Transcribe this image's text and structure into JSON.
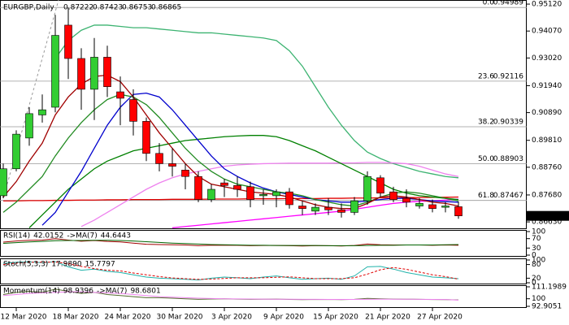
{
  "chart_data": {
    "type": "candlestick",
    "title": "EURGBP,Daily",
    "categories": [
      null,
      "12 Mar 2020",
      null,
      null,
      null,
      "18 Mar 2020",
      null,
      null,
      null,
      "24 Mar 2020",
      null,
      null,
      null,
      "30 Mar 2020",
      null,
      null,
      null,
      "3 Apr 2020",
      null,
      null,
      null,
      "9 Apr 2020",
      null,
      null,
      null,
      "15 Apr 2020",
      null,
      null,
      null,
      "21 Apr 2020",
      null,
      null,
      null,
      "27 Apr 2020",
      null,
      null
    ],
    "open": [
      0.8765,
      0.887,
      0.899,
      0.908,
      0.911,
      0.943,
      0.93,
      0.918,
      0.9305,
      0.917,
      0.914,
      0.9055,
      0.893,
      0.889,
      0.8865,
      0.884,
      0.875,
      0.8815,
      0.8805,
      0.88,
      0.8765,
      0.8765,
      0.878,
      0.8725,
      0.8705,
      0.872,
      0.871,
      0.87,
      0.8745,
      0.8835,
      0.878,
      0.8755,
      0.8725,
      0.873,
      0.872,
      0.87222
    ],
    "high": [
      0.889,
      0.902,
      0.911,
      0.916,
      0.947,
      0.9498,
      0.934,
      0.938,
      0.935,
      0.923,
      0.918,
      0.907,
      0.897,
      0.895,
      0.889,
      0.886,
      0.881,
      0.883,
      0.884,
      0.882,
      0.879,
      0.879,
      0.8795,
      0.8745,
      0.8735,
      0.8755,
      0.8735,
      0.876,
      0.886,
      0.8845,
      0.88,
      0.879,
      0.8755,
      0.875,
      0.874,
      0.87423
    ],
    "low": [
      0.8755,
      0.886,
      0.896,
      0.905,
      0.909,
      0.922,
      0.91,
      0.906,
      0.915,
      0.904,
      0.9,
      0.89,
      0.886,
      0.884,
      0.879,
      0.874,
      0.874,
      0.876,
      0.876,
      0.872,
      0.873,
      0.872,
      0.8715,
      0.869,
      0.869,
      0.869,
      0.868,
      0.869,
      0.873,
      0.876,
      0.874,
      0.872,
      0.8715,
      0.87,
      0.87,
      0.86753
    ],
    "close": [
      0.887,
      0.9005,
      0.9085,
      0.91,
      0.939,
      0.93,
      0.918,
      0.9305,
      0.919,
      0.9145,
      0.9055,
      0.893,
      0.889,
      0.888,
      0.884,
      0.875,
      0.879,
      0.8805,
      0.879,
      0.875,
      0.877,
      0.878,
      0.873,
      0.8715,
      0.872,
      0.871,
      0.87,
      0.8745,
      0.884,
      0.8775,
      0.875,
      0.874,
      0.8735,
      0.8715,
      0.8725,
      0.86865
    ],
    "up_color": "#32cd32",
    "down_color": "#ff0000",
    "ylim": [
      0.8638,
      0.9528
    ],
    "yticks": [
      {
        "value": 0.9512,
        "label": "0.95120"
      },
      {
        "value": 0.9407,
        "label": "0.94070"
      },
      {
        "value": 0.9302,
        "label": "0.93020"
      },
      {
        "value": 0.9194,
        "label": "0.91940"
      },
      {
        "value": 0.9089,
        "label": "0.90890"
      },
      {
        "value": 0.8981,
        "label": "0.89810"
      },
      {
        "value": 0.8876,
        "label": "0.88760"
      },
      {
        "value": 0.8768,
        "label": "0.87680"
      },
      {
        "value": 0.8663,
        "label": "0.86630"
      }
    ],
    "fib_levels": [
      {
        "level": "0.0",
        "value": 0.94989
      },
      {
        "level": "23.6",
        "value": 0.92116
      },
      {
        "level": "38.2",
        "value": 0.90339
      },
      {
        "level": "50.0",
        "value": 0.88903
      },
      {
        "level": "61.8",
        "value": 0.87467
      }
    ],
    "series": [
      {
        "color": "#e00000",
        "values": [
          0.8745,
          0.8745,
          0.8746,
          0.8746,
          0.8747,
          0.8747,
          0.8748,
          0.8748,
          0.8749,
          0.8749,
          0.875,
          0.875,
          0.875,
          0.8751,
          0.8751,
          0.8751,
          0.8752,
          0.8752,
          0.8752,
          0.8753,
          0.8753,
          0.8753,
          0.8754,
          0.8754,
          0.8754,
          0.8755,
          0.8755,
          0.8756,
          0.8756,
          0.8757,
          0.8757,
          0.8758,
          0.8758,
          0.8759,
          0.8759,
          0.876
        ]
      },
      {
        "color": "#3cb371",
        "values": [
          null,
          null,
          null,
          null,
          0.93,
          0.937,
          0.941,
          0.943,
          0.943,
          0.9425,
          0.942,
          0.942,
          0.9415,
          0.941,
          0.9405,
          0.94,
          0.94,
          0.9395,
          0.939,
          0.9385,
          0.938,
          0.937,
          0.933,
          0.927,
          0.919,
          0.911,
          0.904,
          0.898,
          0.8935,
          0.891,
          0.889,
          0.8875,
          0.886,
          0.885,
          0.884,
          0.8835
        ]
      },
      {
        "color": "#ee82ee",
        "values": [
          null,
          null,
          null,
          null,
          null,
          null,
          0.8645,
          0.867,
          0.87,
          0.873,
          0.876,
          0.879,
          0.8815,
          0.8835,
          0.885,
          0.886,
          0.887,
          0.888,
          0.8885,
          0.8888,
          0.889,
          0.8891,
          0.8892,
          0.8892,
          0.8892,
          0.8892,
          0.8893,
          0.8893,
          0.8895,
          0.8895,
          0.8893,
          0.889,
          0.888,
          0.8865,
          0.885,
          0.884
        ]
      },
      {
        "color": "#ff00ff",
        "values": [
          null,
          null,
          null,
          null,
          null,
          null,
          null,
          null,
          null,
          null,
          null,
          null,
          null,
          0.864,
          0.8645,
          0.865,
          0.8655,
          0.866,
          0.8665,
          0.867,
          0.8675,
          0.868,
          0.8685,
          0.869,
          0.8695,
          0.87,
          0.8705,
          0.8712,
          0.872,
          0.8728,
          0.8735,
          0.874,
          0.8743,
          0.8745,
          0.8748,
          0.8752
        ]
      },
      {
        "color": "#008000",
        "values": [
          null,
          null,
          0.864,
          0.869,
          0.874,
          0.879,
          0.883,
          0.887,
          0.89,
          0.892,
          0.894,
          0.895,
          0.896,
          0.897,
          0.898,
          0.8985,
          0.899,
          0.8995,
          0.8998,
          0.9,
          0.9,
          0.8995,
          0.898,
          0.896,
          0.894,
          0.8915,
          0.889,
          0.8865,
          0.884,
          0.8815,
          0.879,
          0.8775,
          0.8765,
          0.876,
          0.8755,
          0.875
        ]
      },
      {
        "color": "#0000cd",
        "values": [
          null,
          null,
          null,
          0.865,
          0.87,
          0.878,
          0.886,
          0.895,
          0.904,
          0.911,
          0.916,
          0.9165,
          0.915,
          0.91,
          0.904,
          0.898,
          0.892,
          0.887,
          0.884,
          0.8815,
          0.8795,
          0.878,
          0.877,
          0.876,
          0.875,
          0.8745,
          0.874,
          0.874,
          0.8745,
          0.875,
          0.8755,
          0.8755,
          0.875,
          0.8745,
          0.8742,
          0.874
        ]
      },
      {
        "color": "#228b22",
        "values": [
          0.87,
          0.874,
          0.879,
          0.884,
          0.892,
          0.899,
          0.905,
          0.91,
          0.914,
          0.916,
          0.915,
          0.912,
          0.907,
          0.901,
          0.895,
          0.89,
          0.886,
          0.883,
          0.881,
          0.88,
          0.879,
          0.878,
          0.8775,
          0.8765,
          0.875,
          0.874,
          0.873,
          0.8725,
          0.874,
          0.876,
          0.8775,
          0.878,
          0.8775,
          0.8765,
          0.8755,
          0.8745
        ]
      },
      {
        "color": "#a00000",
        "values": [
          0.876,
          0.882,
          0.89,
          0.897,
          0.908,
          0.915,
          0.92,
          0.923,
          0.9235,
          0.921,
          0.915,
          0.908,
          0.901,
          0.895,
          0.889,
          0.884,
          0.881,
          0.88,
          0.879,
          0.878,
          0.8775,
          0.877,
          0.876,
          0.8745,
          0.873,
          0.872,
          0.8715,
          0.8715,
          0.8735,
          0.876,
          0.8765,
          0.876,
          0.875,
          0.874,
          0.8735,
          0.8725
        ]
      }
    ],
    "panes": [
      {
        "title": "RSI(14)",
        "ylim": [
          0,
          100
        ],
        "yticks": [
          0,
          30,
          70,
          100
        ],
        "series": [
          {
            "color": "#a00000",
            "values": [
              55,
              60,
              63,
              64,
              70,
              64,
              59,
              62,
              58,
              56,
              51,
              46,
              45,
              44,
              43,
              40,
              42,
              42,
              42,
              40,
              41,
              41,
              40,
              39,
              40,
              40,
              39,
              41,
              47,
              44,
              43,
              43,
              43,
              42,
              43,
              42.0152
            ]
          },
          {
            "name": "->MA(7)",
            "color": "#006400",
            "values": [
              50,
              53,
              56,
              58,
              61,
              62,
              62,
              63,
              63,
              62,
              60,
              57,
              54,
              51,
              49,
              47,
              45,
              44,
              43,
              42,
              42,
              41,
              41,
              41,
              41,
              40,
              40,
              40,
              41,
              42,
              42,
              43,
              43,
              43,
              44,
              44.6443
            ]
          }
        ]
      },
      {
        "title": "Stoch(5,3,3)",
        "ylim": [
          0,
          100
        ],
        "yticks": [
          0,
          20,
          80,
          100
        ],
        "series": [
          {
            "color": "#20b2aa",
            "values": [
              85,
              90,
              92,
              88,
              93,
              70,
              55,
              60,
              50,
              45,
              35,
              25,
              20,
              18,
              15,
              12,
              20,
              25,
              22,
              18,
              25,
              30,
              22,
              15,
              18,
              20,
              15,
              30,
              70,
              72,
              60,
              45,
              35,
              25,
              22,
              17.989
            ],
            "value_labels": [
              null,
              null,
              null,
              null,
              null,
              null,
              null,
              null,
              null,
              null,
              null,
              null,
              null,
              null,
              null,
              null,
              null,
              null,
              null,
              null,
              null,
              null,
              null,
              null,
              null,
              null,
              null,
              null,
              null,
              null,
              null,
              null,
              null,
              null,
              null,
              "17.9890"
            ]
          },
          {
            "color": "#e00000",
            "dashed": true,
            "values": [
              80,
              86,
              90,
              90,
              91,
              84,
              72,
              62,
              55,
              52,
              43,
              35,
              27,
              21,
              18,
              15,
              16,
              19,
              22,
              22,
              22,
              24,
              26,
              22,
              18,
              18,
              18,
              22,
              38,
              57,
              67,
              59,
              47,
              35,
              27,
              15.7797
            ]
          }
        ]
      },
      {
        "title": "Momentum(14)",
        "ylim": [
          92.9051,
          111.1989
        ],
        "yticks": [
          92.9051,
          100,
          111.1989
        ],
        "series": [
          {
            "color": "#556b2f",
            "values": [
              104,
              106,
              107,
              106,
              109,
              107,
              105,
              106,
              104,
              103,
              102,
              101,
              101,
              100.5,
              100,
              99.5,
              99.8,
              100,
              99.7,
              99.5,
              99.6,
              99.7,
              99.4,
              99.2,
              99.3,
              99.4,
              99.2,
              99.5,
              100.3,
              100,
              99.7,
              99.6,
              99.5,
              99.3,
              99.2,
              98.9396
            ]
          },
          {
            "name": "->MA(7)",
            "color": "#ee82ee",
            "values": [
              103,
              104,
              105,
              105.5,
              106,
              106.5,
              106.5,
              106,
              105.5,
              105,
              104,
              103,
              102,
              101.5,
              101,
              100.5,
              100.2,
              100,
              99.9,
              99.8,
              99.7,
              99.6,
              99.6,
              99.5,
              99.5,
              99.4,
              99.4,
              99.4,
              99.5,
              99.6,
              99.6,
              99.6,
              99.5,
              99.4,
              99.3,
              98.6801
            ]
          }
        ]
      }
    ]
  }
}
